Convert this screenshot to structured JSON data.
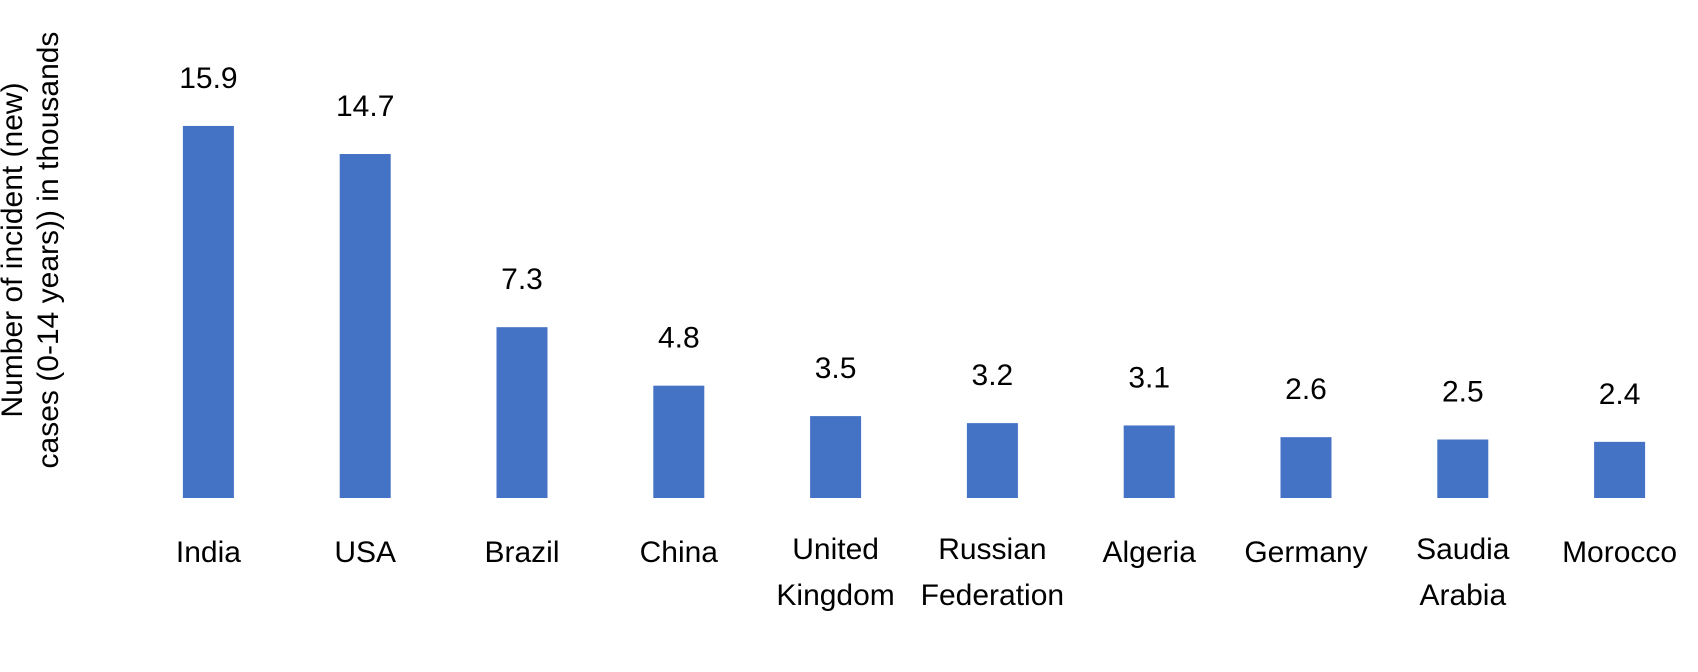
{
  "chart_data": {
    "type": "bar",
    "y_axis_label": "Number of incident (new) cases (0-14 years)) in thousands",
    "categories": [
      "India",
      "USA",
      "Brazil",
      "China",
      "United Kingdom",
      "Russian Federation",
      "Algeria",
      "Germany",
      "Saudia Arabia",
      "Morocco"
    ],
    "values": [
      15.9,
      14.7,
      7.3,
      4.8,
      3.5,
      3.2,
      3.1,
      2.6,
      2.5,
      2.4
    ],
    "color": "#4472c4"
  }
}
